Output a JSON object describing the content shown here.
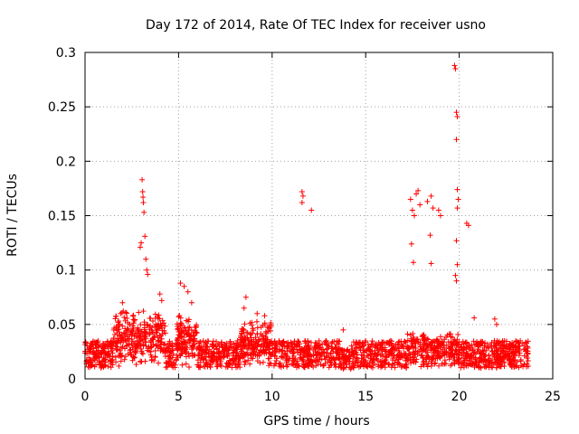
{
  "chart_data": {
    "type": "scatter",
    "title": "Day 172 of 2014, Rate Of TEC Index for receiver usno",
    "xlabel": "GPS time / hours",
    "ylabel": "ROTI / TECUs",
    "xlim": [
      0,
      25
    ],
    "ylim": [
      0,
      0.3
    ],
    "xticks": [
      0,
      5,
      10,
      15,
      20,
      25
    ],
    "yticks": [
      0,
      0.05,
      0.1,
      0.15,
      0.2,
      0.25,
      0.3
    ],
    "grid": true,
    "marker": "plus",
    "color": "#ff0000",
    "series": [
      {
        "name": "ROTI",
        "x_start": 0.0,
        "x_end": 23.7,
        "baseline_range": [
          0.01,
          0.035
        ],
        "notable_points": [
          [
            2.95,
            0.121
          ],
          [
            3.0,
            0.125
          ],
          [
            3.05,
            0.183
          ],
          [
            3.08,
            0.172
          ],
          [
            3.1,
            0.167
          ],
          [
            3.12,
            0.162
          ],
          [
            3.15,
            0.153
          ],
          [
            3.2,
            0.131
          ],
          [
            3.25,
            0.11
          ],
          [
            3.3,
            0.1
          ],
          [
            3.35,
            0.096
          ],
          [
            1.9,
            0.06
          ],
          [
            2.0,
            0.07
          ],
          [
            4.0,
            0.078
          ],
          [
            4.1,
            0.072
          ],
          [
            5.1,
            0.088
          ],
          [
            5.3,
            0.085
          ],
          [
            5.5,
            0.08
          ],
          [
            5.7,
            0.07
          ],
          [
            8.6,
            0.075
          ],
          [
            8.5,
            0.065
          ],
          [
            9.2,
            0.06
          ],
          [
            9.6,
            0.058
          ],
          [
            11.6,
            0.172
          ],
          [
            11.65,
            0.168
          ],
          [
            11.6,
            0.162
          ],
          [
            12.1,
            0.155
          ],
          [
            13.8,
            0.045
          ],
          [
            17.4,
            0.165
          ],
          [
            17.5,
            0.155
          ],
          [
            17.6,
            0.15
          ],
          [
            17.7,
            0.17
          ],
          [
            17.8,
            0.173
          ],
          [
            17.9,
            0.16
          ],
          [
            17.45,
            0.124
          ],
          [
            17.55,
            0.107
          ],
          [
            18.3,
            0.163
          ],
          [
            18.5,
            0.168
          ],
          [
            18.6,
            0.157
          ],
          [
            18.45,
            0.132
          ],
          [
            18.5,
            0.106
          ],
          [
            18.9,
            0.155
          ],
          [
            19.0,
            0.15
          ],
          [
            19.75,
            0.288
          ],
          [
            19.8,
            0.285
          ],
          [
            19.85,
            0.245
          ],
          [
            19.9,
            0.241
          ],
          [
            19.85,
            0.22
          ],
          [
            19.9,
            0.174
          ],
          [
            19.95,
            0.165
          ],
          [
            19.9,
            0.157
          ],
          [
            19.85,
            0.127
          ],
          [
            19.9,
            0.105
          ],
          [
            19.8,
            0.095
          ],
          [
            19.85,
            0.09
          ],
          [
            20.4,
            0.143
          ],
          [
            20.5,
            0.141
          ],
          [
            20.8,
            0.056
          ],
          [
            21.9,
            0.055
          ],
          [
            22.0,
            0.05
          ]
        ]
      }
    ]
  }
}
